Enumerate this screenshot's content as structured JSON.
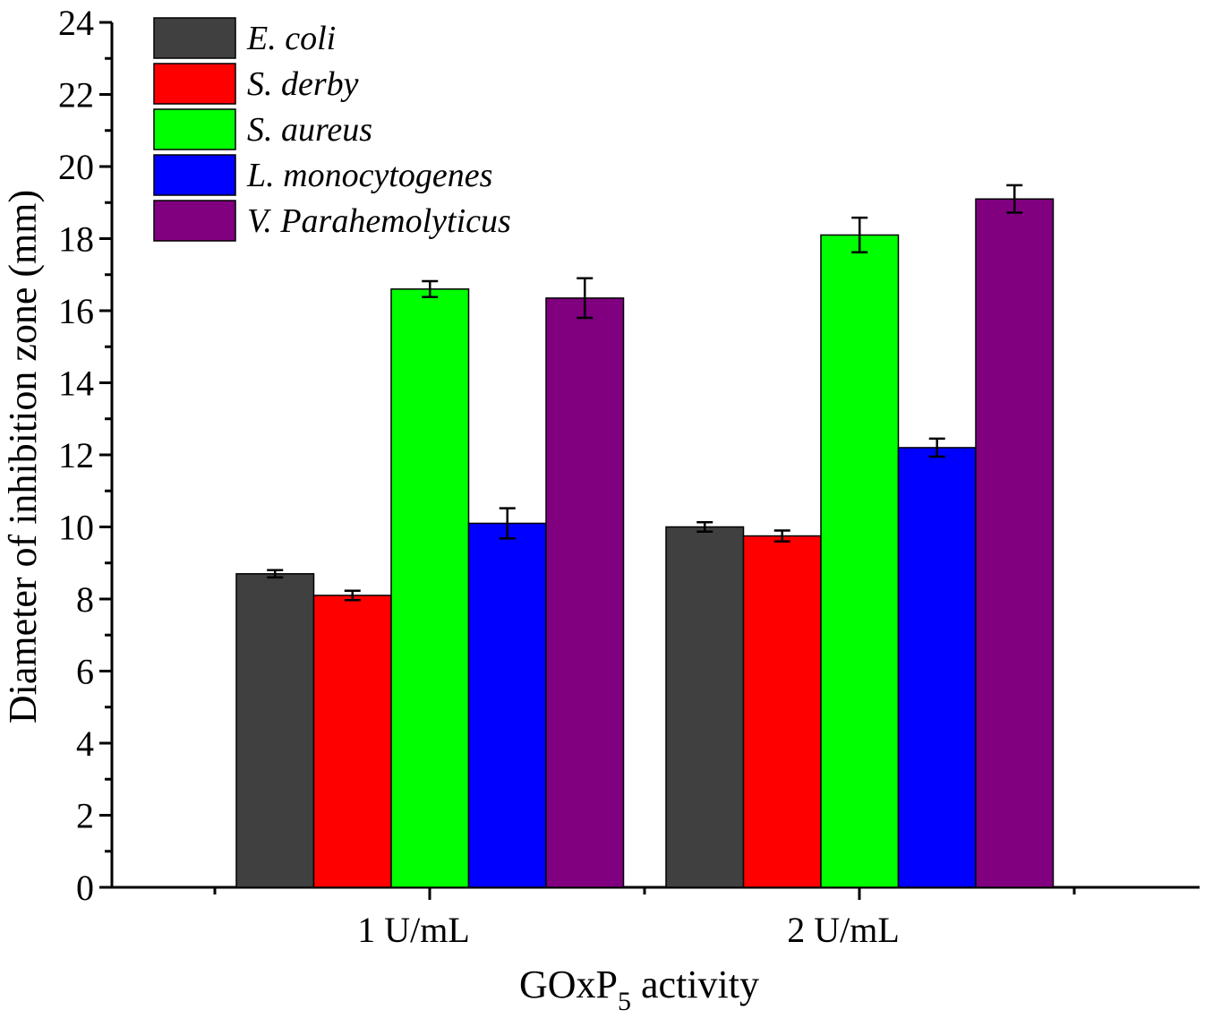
{
  "chart_data": {
    "type": "bar",
    "title": "",
    "xlabel_main": "GOxP",
    "xlabel_sub": "5",
    "xlabel_tail": " activity",
    "ylabel": "Diameter of inhibition zone (mm)",
    "ylim": [
      0,
      24
    ],
    "yticks": [
      "0",
      "2",
      "4",
      "6",
      "8",
      "10",
      "12",
      "14",
      "16",
      "18",
      "20",
      "22",
      "24"
    ],
    "categories": [
      "1 U/mL",
      "2 U/mL"
    ],
    "legend_position": "top-left",
    "series": [
      {
        "name": "E. coli",
        "color": "#404040",
        "values": [
          8.7,
          10.0
        ],
        "errors": [
          0.1,
          0.13
        ]
      },
      {
        "name": "S. derby",
        "color": "#ff0000",
        "values": [
          8.1,
          9.75
        ],
        "errors": [
          0.13,
          0.15
        ]
      },
      {
        "name": "S. aureus",
        "color": "#00ff00",
        "values": [
          16.6,
          18.1
        ],
        "errors": [
          0.22,
          0.48
        ]
      },
      {
        "name": "L. monocytogenes",
        "color": "#0000ff",
        "values": [
          10.1,
          12.2
        ],
        "errors": [
          0.42,
          0.25
        ]
      },
      {
        "name": "V. Parahemolyticus",
        "color": "#800080",
        "values": [
          16.35,
          19.1
        ],
        "errors": [
          0.55,
          0.38
        ]
      }
    ]
  }
}
